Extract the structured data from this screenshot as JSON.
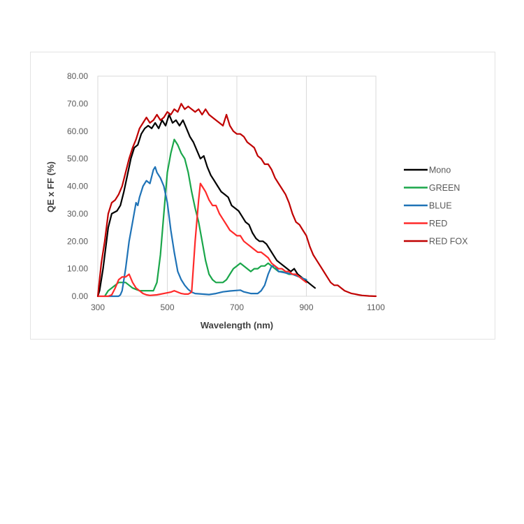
{
  "chart_data": {
    "type": "line",
    "title": "",
    "xlabel": "Wavelength (nm)",
    "ylabel": "QE x FF (%)",
    "xlim": [
      300,
      1100
    ],
    "ylim": [
      0,
      80
    ],
    "x_ticks": [
      "300",
      "500",
      "700",
      "900",
      "1100"
    ],
    "y_ticks": [
      "0.00",
      "10.00",
      "20.00",
      "30.00",
      "40.00",
      "50.00",
      "60.00",
      "70.00",
      "80.00"
    ],
    "x_tick_values": [
      300,
      500,
      700,
      900,
      1100
    ],
    "y_tick_values": [
      0,
      10,
      20,
      30,
      40,
      50,
      60,
      70,
      80
    ],
    "grid": "vertical",
    "legend_position": "right",
    "series": [
      {
        "name": "Mono",
        "color": "#000000",
        "points": [
          [
            300,
            0
          ],
          [
            305,
            2
          ],
          [
            315,
            10
          ],
          [
            330,
            25
          ],
          [
            340,
            30
          ],
          [
            355,
            31
          ],
          [
            365,
            33
          ],
          [
            375,
            38
          ],
          [
            385,
            44
          ],
          [
            395,
            50
          ],
          [
            405,
            54
          ],
          [
            415,
            55
          ],
          [
            425,
            59
          ],
          [
            435,
            61
          ],
          [
            445,
            62
          ],
          [
            455,
            61
          ],
          [
            465,
            63
          ],
          [
            475,
            61
          ],
          [
            485,
            64
          ],
          [
            495,
            62
          ],
          [
            505,
            66
          ],
          [
            515,
            63
          ],
          [
            525,
            64
          ],
          [
            535,
            62
          ],
          [
            545,
            64
          ],
          [
            555,
            61
          ],
          [
            565,
            58
          ],
          [
            575,
            56
          ],
          [
            585,
            53
          ],
          [
            595,
            50
          ],
          [
            605,
            51
          ],
          [
            615,
            47
          ],
          [
            625,
            44
          ],
          [
            635,
            42
          ],
          [
            645,
            40
          ],
          [
            655,
            38
          ],
          [
            665,
            37
          ],
          [
            675,
            36
          ],
          [
            685,
            33
          ],
          [
            695,
            32
          ],
          [
            705,
            31
          ],
          [
            715,
            29
          ],
          [
            725,
            27
          ],
          [
            735,
            26
          ],
          [
            745,
            23
          ],
          [
            755,
            21
          ],
          [
            765,
            20
          ],
          [
            775,
            20
          ],
          [
            785,
            19
          ],
          [
            795,
            17
          ],
          [
            805,
            15
          ],
          [
            815,
            13
          ],
          [
            825,
            12
          ],
          [
            835,
            11
          ],
          [
            845,
            10
          ],
          [
            855,
            9
          ],
          [
            865,
            10
          ],
          [
            875,
            8
          ],
          [
            885,
            7
          ],
          [
            895,
            6
          ],
          [
            905,
            5
          ],
          [
            915,
            4
          ],
          [
            925,
            3
          ]
        ]
      },
      {
        "name": "GREEN",
        "color": "#1aa64a",
        "points": [
          [
            320,
            0
          ],
          [
            330,
            2
          ],
          [
            340,
            3
          ],
          [
            350,
            4
          ],
          [
            360,
            5
          ],
          [
            370,
            5
          ],
          [
            380,
            5
          ],
          [
            390,
            4
          ],
          [
            400,
            3
          ],
          [
            410,
            2.5
          ],
          [
            420,
            2
          ],
          [
            430,
            2
          ],
          [
            440,
            2
          ],
          [
            450,
            2
          ],
          [
            460,
            2
          ],
          [
            470,
            5
          ],
          [
            480,
            15
          ],
          [
            490,
            30
          ],
          [
            500,
            45
          ],
          [
            510,
            52
          ],
          [
            520,
            57
          ],
          [
            530,
            55
          ],
          [
            540,
            52
          ],
          [
            550,
            50
          ],
          [
            560,
            45
          ],
          [
            570,
            38
          ],
          [
            580,
            32
          ],
          [
            590,
            27
          ],
          [
            600,
            20
          ],
          [
            610,
            13
          ],
          [
            620,
            8
          ],
          [
            630,
            6
          ],
          [
            640,
            5
          ],
          [
            650,
            5
          ],
          [
            660,
            5
          ],
          [
            670,
            6
          ],
          [
            680,
            8
          ],
          [
            690,
            10
          ],
          [
            700,
            11
          ],
          [
            710,
            12
          ],
          [
            720,
            11
          ],
          [
            730,
            10
          ],
          [
            740,
            9
          ],
          [
            750,
            10
          ],
          [
            760,
            10
          ],
          [
            770,
            11
          ],
          [
            780,
            11
          ],
          [
            790,
            12
          ],
          [
            800,
            11
          ],
          [
            810,
            10
          ],
          [
            820,
            9
          ],
          [
            830,
            9
          ],
          [
            840,
            8.5
          ],
          [
            850,
            8
          ],
          [
            860,
            8
          ],
          [
            870,
            7.5
          ],
          [
            880,
            7
          ],
          [
            890,
            6.5
          ],
          [
            900,
            6
          ]
        ]
      },
      {
        "name": "BLUE",
        "color": "#1f73b7",
        "points": [
          [
            330,
            0
          ],
          [
            340,
            0
          ],
          [
            350,
            0
          ],
          [
            360,
            0
          ],
          [
            365,
            0.5
          ],
          [
            370,
            2
          ],
          [
            380,
            10
          ],
          [
            390,
            20
          ],
          [
            400,
            27
          ],
          [
            410,
            34
          ],
          [
            415,
            33
          ],
          [
            420,
            36
          ],
          [
            430,
            40
          ],
          [
            440,
            42
          ],
          [
            450,
            41
          ],
          [
            460,
            46
          ],
          [
            465,
            47
          ],
          [
            470,
            45
          ],
          [
            480,
            43
          ],
          [
            490,
            40
          ],
          [
            500,
            34
          ],
          [
            510,
            24
          ],
          [
            520,
            16
          ],
          [
            530,
            9
          ],
          [
            540,
            6
          ],
          [
            550,
            4
          ],
          [
            560,
            2.5
          ],
          [
            570,
            1.5
          ],
          [
            580,
            1
          ],
          [
            600,
            0.8
          ],
          [
            620,
            0.6
          ],
          [
            640,
            1
          ],
          [
            660,
            1.6
          ],
          [
            680,
            1.9
          ],
          [
            700,
            2.1
          ],
          [
            710,
            2.2
          ],
          [
            720,
            1.6
          ],
          [
            740,
            1
          ],
          [
            760,
            1
          ],
          [
            770,
            2
          ],
          [
            780,
            4
          ],
          [
            790,
            8
          ],
          [
            800,
            11
          ],
          [
            810,
            11
          ],
          [
            820,
            9
          ],
          [
            840,
            8.5
          ],
          [
            860,
            8
          ],
          [
            880,
            7
          ],
          [
            900,
            6
          ]
        ]
      },
      {
        "name": "RED",
        "color": "#ff2a2a",
        "points": [
          [
            300,
            0
          ],
          [
            330,
            0
          ],
          [
            340,
            0.5
          ],
          [
            350,
            3
          ],
          [
            360,
            6
          ],
          [
            370,
            7
          ],
          [
            380,
            7
          ],
          [
            390,
            8
          ],
          [
            400,
            5
          ],
          [
            410,
            3
          ],
          [
            420,
            2
          ],
          [
            430,
            1
          ],
          [
            440,
            0.5
          ],
          [
            450,
            0.3
          ],
          [
            470,
            0.5
          ],
          [
            490,
            1
          ],
          [
            510,
            1.5
          ],
          [
            520,
            2
          ],
          [
            530,
            1.5
          ],
          [
            540,
            1
          ],
          [
            550,
            0.8
          ],
          [
            560,
            0.8
          ],
          [
            570,
            1.5
          ],
          [
            580,
            20
          ],
          [
            590,
            35
          ],
          [
            595,
            41
          ],
          [
            600,
            40
          ],
          [
            610,
            38
          ],
          [
            620,
            35
          ],
          [
            630,
            33
          ],
          [
            640,
            33
          ],
          [
            650,
            30
          ],
          [
            660,
            28
          ],
          [
            670,
            26
          ],
          [
            680,
            24
          ],
          [
            690,
            23
          ],
          [
            700,
            22
          ],
          [
            710,
            22
          ],
          [
            720,
            20
          ],
          [
            730,
            19
          ],
          [
            740,
            18
          ],
          [
            750,
            17
          ],
          [
            760,
            16
          ],
          [
            770,
            16
          ],
          [
            780,
            15
          ],
          [
            790,
            14
          ],
          [
            800,
            12
          ],
          [
            810,
            11
          ],
          [
            820,
            10
          ],
          [
            830,
            10
          ],
          [
            840,
            9
          ],
          [
            850,
            9
          ],
          [
            860,
            8
          ],
          [
            870,
            8
          ],
          [
            880,
            7
          ],
          [
            890,
            6
          ],
          [
            900,
            5
          ]
        ]
      },
      {
        "name": "RED FOX",
        "color": "#c00000",
        "points": [
          [
            300,
            0
          ],
          [
            310,
            12
          ],
          [
            320,
            20
          ],
          [
            330,
            30
          ],
          [
            340,
            34
          ],
          [
            350,
            35
          ],
          [
            360,
            37
          ],
          [
            370,
            40
          ],
          [
            380,
            45
          ],
          [
            390,
            50
          ],
          [
            400,
            54
          ],
          [
            410,
            57
          ],
          [
            420,
            61
          ],
          [
            430,
            63
          ],
          [
            440,
            65
          ],
          [
            450,
            63
          ],
          [
            460,
            64
          ],
          [
            470,
            66
          ],
          [
            480,
            64
          ],
          [
            490,
            65
          ],
          [
            500,
            67
          ],
          [
            510,
            66
          ],
          [
            520,
            68
          ],
          [
            530,
            67
          ],
          [
            540,
            70
          ],
          [
            550,
            68
          ],
          [
            560,
            69
          ],
          [
            570,
            68
          ],
          [
            580,
            67
          ],
          [
            590,
            68
          ],
          [
            600,
            66
          ],
          [
            610,
            68
          ],
          [
            620,
            66
          ],
          [
            630,
            65
          ],
          [
            640,
            64
          ],
          [
            650,
            63
          ],
          [
            660,
            62
          ],
          [
            670,
            66
          ],
          [
            680,
            62
          ],
          [
            690,
            60
          ],
          [
            700,
            59
          ],
          [
            710,
            59
          ],
          [
            720,
            58
          ],
          [
            730,
            56
          ],
          [
            740,
            55
          ],
          [
            750,
            54
          ],
          [
            760,
            51
          ],
          [
            770,
            50
          ],
          [
            780,
            48
          ],
          [
            790,
            48
          ],
          [
            800,
            46
          ],
          [
            810,
            43
          ],
          [
            820,
            41
          ],
          [
            830,
            39
          ],
          [
            840,
            37
          ],
          [
            850,
            34
          ],
          [
            860,
            30
          ],
          [
            870,
            27
          ],
          [
            880,
            26
          ],
          [
            890,
            24
          ],
          [
            900,
            22
          ],
          [
            910,
            18
          ],
          [
            920,
            15
          ],
          [
            930,
            13
          ],
          [
            940,
            11
          ],
          [
            950,
            9
          ],
          [
            960,
            7
          ],
          [
            970,
            5
          ],
          [
            980,
            4
          ],
          [
            990,
            4
          ],
          [
            1000,
            3
          ],
          [
            1010,
            2
          ],
          [
            1020,
            1.5
          ],
          [
            1030,
            1
          ],
          [
            1040,
            0.8
          ],
          [
            1050,
            0.5
          ],
          [
            1060,
            0.3
          ],
          [
            1080,
            0.1
          ],
          [
            1100,
            0
          ]
        ]
      }
    ]
  }
}
